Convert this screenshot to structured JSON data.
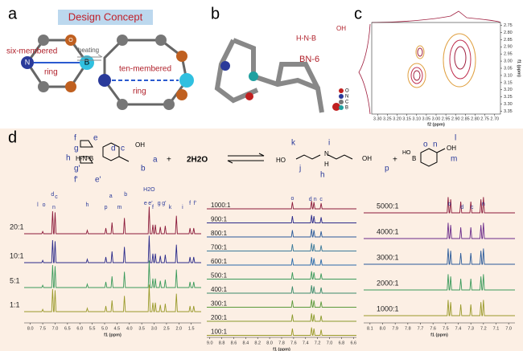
{
  "panel_a": {
    "label": "a",
    "title": "Design Concept",
    "left_ring_1": "six-membered",
    "left_ring_2": "ring",
    "right_ring_1": "ten-membered",
    "right_ring_2": "ring",
    "arrow": "heating",
    "atom_n": "N",
    "atom_b": "B",
    "atom_o": "O"
  },
  "panel_b": {
    "label": "b",
    "compound": "BN-6",
    "hnb": "H-N-B",
    "oh": "OH",
    "legend": [
      "O",
      "N",
      "C",
      "B"
    ]
  },
  "panel_c": {
    "label": "c",
    "xlabel": "f2 (ppm)",
    "ylabel": "f1 (ppm)",
    "xlim": [
      3.33,
      2.67
    ],
    "xticks": [
      {
        "value": 3.3,
        "label": "3.30"
      },
      3.25,
      {
        "value": 3.2,
        "label": "3.20"
      },
      3.15,
      {
        "value": 3.1,
        "label": "3.10"
      },
      3.05,
      {
        "value": 3,
        "label": "3.00"
      },
      2.95,
      {
        "value": 2.9,
        "label": "2.90"
      },
      2.85,
      {
        "value": 2.8,
        "label": "2.80"
      },
      2.75,
      {
        "value": 2.7,
        "label": "2.70"
      }
    ],
    "ylim": [
      2.73,
      3.37
    ],
    "yticks": [
      2.75,
      {
        "value": 2.8,
        "label": "2.80"
      },
      2.85,
      {
        "value": 2.9,
        "label": "2.90"
      },
      2.95,
      {
        "value": 3,
        "label": "3.00"
      },
      3.05,
      {
        "value": 3.1,
        "label": "3.10"
      },
      3.15,
      {
        "value": 3.2,
        "label": "3.20"
      },
      3.25,
      {
        "value": 3.3,
        "label": "3.30"
      },
      3.35
    ]
  },
  "panel_d": {
    "label": "d",
    "reaction": {
      "a": "a",
      "b": "b",
      "c": "c",
      "d": "d",
      "e": "e",
      "e2": "e'",
      "f": "f",
      "f2": "f'",
      "g": "g",
      "g2": "g'",
      "h": "h",
      "hnb": "H-N-B",
      "oh": "OH",
      "plus": "+",
      "water": "2H2O",
      "k": "k",
      "i": "i",
      "j": "j",
      "h_amine": "h",
      "ho": "HO",
      "n_amine": "N",
      "h_atom": "H",
      "oh_amine": "OH",
      "plus2": "+",
      "o": "o",
      "n": "n",
      "l": "l",
      "m": "m",
      "p": "p",
      "b_atom": "B",
      "ho2": "HO",
      "oh2": "OH"
    },
    "spectra": [
      {
        "xlabel": "f1 (ppm)",
        "xlim": [
          8.25,
          1.1
        ],
        "xticks": [
          {
            "value": 8,
            "label": "8.0"
          },
          7.5,
          {
            "value": 7,
            "label": "7.0"
          },
          6.5,
          {
            "value": 6,
            "label": "6.0"
          },
          5.5,
          {
            "value": 5,
            "label": "5.0"
          },
          4.5,
          {
            "value": 4,
            "label": "4.0"
          },
          3.5,
          {
            "value": 3,
            "label": "3.0"
          },
          2.5,
          {
            "value": 2,
            "label": "2.0"
          },
          1.5
        ],
        "ratios": [
          "20:1",
          "10:1",
          "5:1",
          "1:1"
        ],
        "peak_labels": [
          "l",
          "o",
          "d",
          "c",
          "n",
          "h",
          "p",
          "a",
          "m",
          "b",
          "H2O",
          "e",
          "e'",
          "f",
          "g",
          "g'",
          "k",
          "i",
          "f",
          "f'"
        ]
      },
      {
        "xlabel": "f1 (ppm)",
        "xlim": [
          9.05,
          6.55
        ],
        "xticks": [
          {
            "value": 9,
            "label": "9.0"
          },
          8.8,
          8.6,
          8.4,
          8.2,
          {
            "value": 8,
            "label": "8.0"
          },
          7.8,
          7.6,
          7.4,
          7.2,
          {
            "value": 7,
            "label": "7.0"
          },
          6.8,
          6.6
        ],
        "ratios": [
          "1000:1",
          "900:1",
          "800:1",
          "700:1",
          "600:1",
          "500:1",
          "400:1",
          "300:1",
          "200:1",
          "100:1"
        ],
        "peak_labels": [
          "o",
          "d",
          "n",
          "c"
        ]
      },
      {
        "xlabel": "f1 (ppm)",
        "xlim": [
          8.15,
          6.95
        ],
        "xticks": [
          8.1,
          {
            "value": 8,
            "label": "8.0"
          },
          7.9,
          7.8,
          7.7,
          7.6,
          7.5,
          7.4,
          7.3,
          7.2,
          7.1,
          {
            "value": 7,
            "label": "7.0"
          }
        ],
        "ratios": [
          "5000:1",
          "4000:1",
          "3000:1",
          "2000:1",
          "1000:1"
        ],
        "peak_labels": [
          "o",
          "d",
          "c",
          "n"
        ]
      }
    ]
  }
}
